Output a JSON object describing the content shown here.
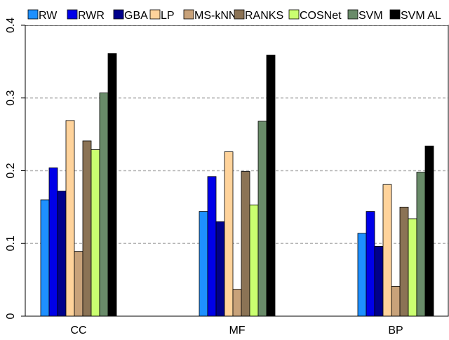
{
  "chart_data": {
    "type": "bar",
    "categories": [
      "CC",
      "MF",
      "BP"
    ],
    "ylim": [
      0,
      0.4
    ],
    "yticks": [
      {
        "value": 0,
        "label": "0"
      },
      {
        "value": 0.1,
        "label": "0.1"
      },
      {
        "value": 0.2,
        "label": "0.2"
      },
      {
        "value": 0.3,
        "label": "0.3"
      },
      {
        "value": 0.4,
        "label": "0.4"
      }
    ],
    "grid": "horizontal dashed",
    "legend_position": "top",
    "series": [
      {
        "name": "RW",
        "color": "#1E90FF",
        "values": [
          0.16,
          0.144,
          0.114
        ]
      },
      {
        "name": "RWR",
        "color": "#0000E8",
        "values": [
          0.204,
          0.192,
          0.144
        ]
      },
      {
        "name": "GBA",
        "color": "#00008B",
        "values": [
          0.172,
          0.13,
          0.096
        ]
      },
      {
        "name": "LP",
        "color": "#FFD39B",
        "values": [
          0.269,
          0.226,
          0.181
        ]
      },
      {
        "name": "MS-kNN",
        "color": "#C8A27A",
        "values": [
          0.089,
          0.037,
          0.041
        ]
      },
      {
        "name": "RANKS",
        "color": "#8B7355",
        "values": [
          0.241,
          0.199,
          0.15
        ]
      },
      {
        "name": "COSNet",
        "color": "#CAFF70",
        "values": [
          0.229,
          0.153,
          0.134
        ]
      },
      {
        "name": "SVM",
        "color": "#698B69",
        "values": [
          0.307,
          0.268,
          0.198
        ]
      },
      {
        "name": "SVM AL",
        "color": "#000000",
        "values": [
          0.361,
          0.359,
          0.234
        ]
      }
    ]
  }
}
